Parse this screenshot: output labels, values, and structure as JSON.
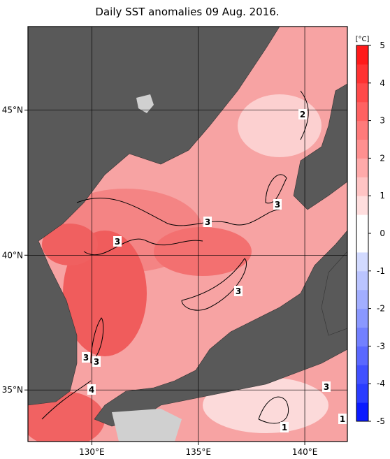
{
  "map": {
    "title": "Daily SST anomalies 09 Aug. 2016.",
    "lon_lim": [
      127,
      142
    ],
    "lat_lim": [
      33,
      47.7
    ],
    "lon_ticks": [
      {
        "value": 130,
        "label": "130°E"
      },
      {
        "value": 135,
        "label": "135°E"
      },
      {
        "value": 140,
        "label": "140°E"
      }
    ],
    "lat_ticks": [
      {
        "value": 35,
        "label": "35°N"
      },
      {
        "value": 40,
        "label": "40°N"
      },
      {
        "value": 45,
        "label": "45°N"
      }
    ],
    "contour_labels": [
      2,
      3,
      3,
      3,
      3,
      3,
      3,
      4,
      3,
      1,
      1
    ],
    "colorbar": {
      "unit": "[°C]",
      "lim": [
        -5,
        5
      ],
      "ticks": [
        -5,
        -4,
        -3,
        -2,
        -1,
        0,
        1,
        2,
        3,
        4,
        5
      ],
      "colors": [
        "#0a1aff",
        "#2a3cff",
        "#4050ff",
        "#5a68ff",
        "#7280ff",
        "#8a98ff",
        "#a2aeff",
        "#bac4ff",
        "#d2daff",
        "#ffffff",
        "#ffffff",
        "#ffdede",
        "#ffc4c4",
        "#ffaaaa",
        "#ff9090",
        "#ff7a7a",
        "#ff6262",
        "#ff4a4a",
        "#ff3232",
        "#ff1a1a"
      ]
    }
  }
}
